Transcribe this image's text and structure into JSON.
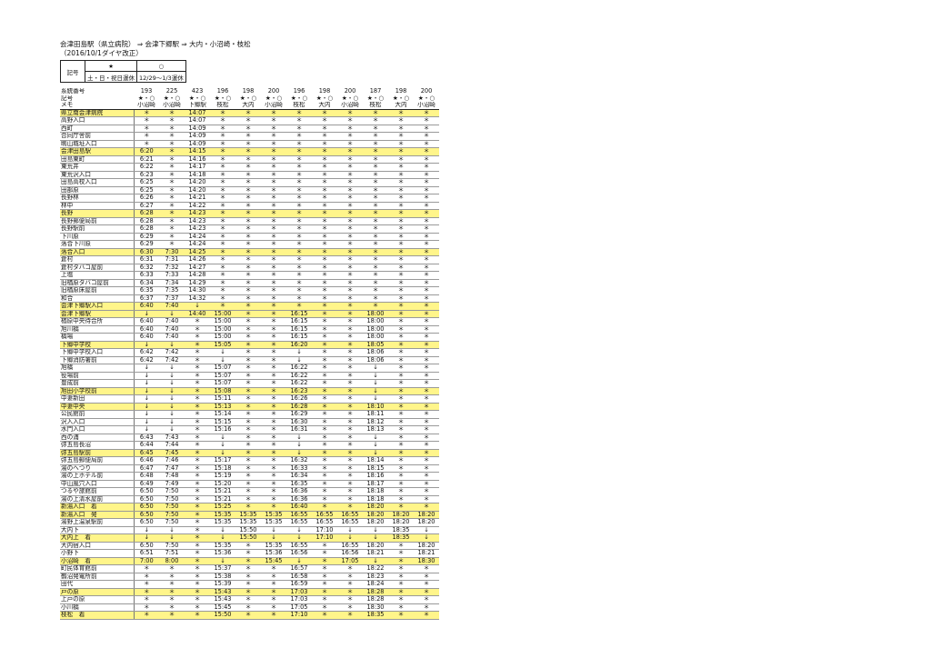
{
  "title": {
    "line1": "会津田島駅（県立病院） ⇒ 会津下郷駅 ⇒ 大内・小沼崎・枝松",
    "line2": "（2016/10/1ダイヤ改正）"
  },
  "legend": {
    "key_label": "記号",
    "sym1": "★",
    "sym2": "○",
    "desc1": "土・日・祝日運休",
    "desc2": "12/29～1/3運休"
  },
  "timetable": {
    "header_labels": [
      "系統番号",
      "記号",
      "メモ"
    ],
    "route_numbers": [
      "193",
      "225",
      "423",
      "196",
      "198",
      "200",
      "196",
      "198",
      "200",
      "187",
      "198",
      "200"
    ],
    "symbols": [
      "★・○",
      "★・○",
      "★・○",
      "★・○",
      "★・○",
      "★・○",
      "★・○",
      "★・○",
      "★・○",
      "★・○",
      "★・○",
      "★・○"
    ],
    "memos": [
      "小沼崎",
      "小沼崎",
      "下郷駅",
      "枝松",
      "大内",
      "小沼崎",
      "枝松",
      "大内",
      "小沼崎",
      "枝松",
      "大内",
      "小沼崎"
    ],
    "rows": [
      {
        "stop": "県立南会津病院",
        "hl": true,
        "times": [
          "＊",
          "＊",
          "14:07",
          "＊",
          "＊",
          "＊",
          "＊",
          "＊",
          "＊",
          "＊",
          "＊",
          "＊"
        ]
      },
      {
        "stop": "高野入口",
        "times": [
          "＊",
          "＊",
          "14:07",
          "＊",
          "＊",
          "＊",
          "＊",
          "＊",
          "＊",
          "＊",
          "＊",
          "＊"
        ]
      },
      {
        "stop": "西町",
        "times": [
          "＊",
          "＊",
          "14:09",
          "＊",
          "＊",
          "＊",
          "＊",
          "＊",
          "＊",
          "＊",
          "＊",
          "＊"
        ]
      },
      {
        "stop": "合同庁舎前",
        "times": [
          "＊",
          "＊",
          "14:09",
          "＊",
          "＊",
          "＊",
          "＊",
          "＊",
          "＊",
          "＊",
          "＊",
          "＊"
        ]
      },
      {
        "stop": "鴫山城址入口",
        "times": [
          "＊",
          "＊",
          "14:09",
          "＊",
          "＊",
          "＊",
          "＊",
          "＊",
          "＊",
          "＊",
          "＊",
          "＊"
        ]
      },
      {
        "stop": "会津田島駅",
        "hl": true,
        "times": [
          "6:20",
          "＊",
          "14:15",
          "＊",
          "＊",
          "＊",
          "＊",
          "＊",
          "＊",
          "＊",
          "＊",
          "＊"
        ]
      },
      {
        "stop": "田島東町",
        "times": [
          "6:21",
          "＊",
          "14:16",
          "＊",
          "＊",
          "＊",
          "＊",
          "＊",
          "＊",
          "＊",
          "＊",
          "＊"
        ]
      },
      {
        "stop": "東荒井",
        "times": [
          "6:22",
          "＊",
          "14:17",
          "＊",
          "＊",
          "＊",
          "＊",
          "＊",
          "＊",
          "＊",
          "＊",
          "＊"
        ]
      },
      {
        "stop": "東荒沢入口",
        "times": [
          "6:23",
          "＊",
          "14:18",
          "＊",
          "＊",
          "＊",
          "＊",
          "＊",
          "＊",
          "＊",
          "＊",
          "＊"
        ]
      },
      {
        "stop": "田島高校入口",
        "times": [
          "6:25",
          "＊",
          "14:20",
          "＊",
          "＊",
          "＊",
          "＊",
          "＊",
          "＊",
          "＊",
          "＊",
          "＊"
        ]
      },
      {
        "stop": "田部原",
        "times": [
          "6:25",
          "＊",
          "14:20",
          "＊",
          "＊",
          "＊",
          "＊",
          "＊",
          "＊",
          "＊",
          "＊",
          "＊"
        ]
      },
      {
        "stop": "長野林",
        "times": [
          "6:26",
          "＊",
          "14:21",
          "＊",
          "＊",
          "＊",
          "＊",
          "＊",
          "＊",
          "＊",
          "＊",
          "＊"
        ]
      },
      {
        "stop": "林中",
        "times": [
          "6:27",
          "＊",
          "14:22",
          "＊",
          "＊",
          "＊",
          "＊",
          "＊",
          "＊",
          "＊",
          "＊",
          "＊"
        ]
      },
      {
        "stop": "長野",
        "hl": true,
        "times": [
          "6:28",
          "＊",
          "14:23",
          "＊",
          "＊",
          "＊",
          "＊",
          "＊",
          "＊",
          "＊",
          "＊",
          "＊"
        ]
      },
      {
        "stop": "長野郵便局前",
        "times": [
          "6:28",
          "＊",
          "14:23",
          "＊",
          "＊",
          "＊",
          "＊",
          "＊",
          "＊",
          "＊",
          "＊",
          "＊"
        ]
      },
      {
        "stop": "長野駅前",
        "times": [
          "6:28",
          "＊",
          "14:23",
          "＊",
          "＊",
          "＊",
          "＊",
          "＊",
          "＊",
          "＊",
          "＊",
          "＊"
        ]
      },
      {
        "stop": "下川原",
        "times": [
          "6:29",
          "＊",
          "14:24",
          "＊",
          "＊",
          "＊",
          "＊",
          "＊",
          "＊",
          "＊",
          "＊",
          "＊"
        ]
      },
      {
        "stop": "落合下川原",
        "times": [
          "6:29",
          "＊",
          "14:24",
          "＊",
          "＊",
          "＊",
          "＊",
          "＊",
          "＊",
          "＊",
          "＊",
          "＊"
        ]
      },
      {
        "stop": "落合入口",
        "hl": true,
        "times": [
          "6:30",
          "7:30",
          "14:25",
          "＊",
          "＊",
          "＊",
          "＊",
          "＊",
          "＊",
          "＊",
          "＊",
          "＊"
        ]
      },
      {
        "stop": "倉村",
        "times": [
          "6:31",
          "7:31",
          "14:26",
          "＊",
          "＊",
          "＊",
          "＊",
          "＊",
          "＊",
          "＊",
          "＊",
          "＊"
        ]
      },
      {
        "stop": "倉村タバコ屋前",
        "times": [
          "6:32",
          "7:32",
          "14:27",
          "＊",
          "＊",
          "＊",
          "＊",
          "＊",
          "＊",
          "＊",
          "＊",
          "＊"
        ]
      },
      {
        "stop": "上塩",
        "times": [
          "6:33",
          "7:33",
          "14:28",
          "＊",
          "＊",
          "＊",
          "＊",
          "＊",
          "＊",
          "＊",
          "＊",
          "＊"
        ]
      },
      {
        "stop": "旧楢原タバコ屋前",
        "times": [
          "6:34",
          "7:34",
          "14:29",
          "＊",
          "＊",
          "＊",
          "＊",
          "＊",
          "＊",
          "＊",
          "＊",
          "＊"
        ]
      },
      {
        "stop": "旧楢原床屋前",
        "times": [
          "6:35",
          "7:35",
          "14:30",
          "＊",
          "＊",
          "＊",
          "＊",
          "＊",
          "＊",
          "＊",
          "＊",
          "＊"
        ]
      },
      {
        "stop": "和合",
        "times": [
          "6:37",
          "7:37",
          "14:32",
          "＊",
          "＊",
          "＊",
          "＊",
          "＊",
          "＊",
          "＊",
          "＊",
          "＊"
        ]
      },
      {
        "stop": "会津下郷駅入口",
        "hl": true,
        "times": [
          "6:40",
          "7:40",
          "↓",
          "＊",
          "＊",
          "＊",
          "＊",
          "＊",
          "＊",
          "＊",
          "＊",
          "＊"
        ]
      },
      {
        "stop": "会津下郷駅",
        "hl": true,
        "times": [
          "↓",
          "↓",
          "14:40",
          "15:00",
          "＊",
          "＊",
          "16:15",
          "＊",
          "＊",
          "18:00",
          "＊",
          "＊"
        ]
      },
      {
        "stop": "楢原中央待合所",
        "times": [
          "6:40",
          "7:40",
          "＊",
          "15:00",
          "＊",
          "＊",
          "16:15",
          "＊",
          "＊",
          "18:00",
          "＊",
          "＊"
        ]
      },
      {
        "stop": "旭川橋",
        "times": [
          "6:40",
          "7:40",
          "＊",
          "15:00",
          "＊",
          "＊",
          "16:15",
          "＊",
          "＊",
          "18:00",
          "＊",
          "＊"
        ]
      },
      {
        "stop": "橋場",
        "times": [
          "6:40",
          "7:40",
          "＊",
          "15:00",
          "＊",
          "＊",
          "16:15",
          "＊",
          "＊",
          "18:00",
          "＊",
          "＊"
        ]
      },
      {
        "stop": "下郷中学校",
        "hl": true,
        "times": [
          "↓",
          "↓",
          "＊",
          "15:05",
          "＊",
          "＊",
          "16:20",
          "＊",
          "＊",
          "18:05",
          "＊",
          "＊"
        ]
      },
      {
        "stop": "下郷中学校入口",
        "times": [
          "6:42",
          "7:42",
          "＊",
          "↓",
          "＊",
          "＊",
          "↓",
          "＊",
          "＊",
          "18:06",
          "＊",
          "＊"
        ]
      },
      {
        "stop": "下郷消防署前",
        "times": [
          "6:42",
          "7:42",
          "＊",
          "↓",
          "＊",
          "＊",
          "↓",
          "＊",
          "＊",
          "18:06",
          "＊",
          "＊"
        ]
      },
      {
        "stop": "旭橋",
        "times": [
          "↓",
          "↓",
          "＊",
          "15:07",
          "＊",
          "＊",
          "16:22",
          "＊",
          "＊",
          "↓",
          "＊",
          "＊"
        ]
      },
      {
        "stop": "役場前",
        "times": [
          "↓",
          "↓",
          "＊",
          "15:07",
          "＊",
          "＊",
          "16:22",
          "＊",
          "＊",
          "↓",
          "＊",
          "＊"
        ]
      },
      {
        "stop": "豊成前",
        "times": [
          "↓",
          "↓",
          "＊",
          "15:07",
          "＊",
          "＊",
          "16:22",
          "＊",
          "＊",
          "↓",
          "＊",
          "＊"
        ]
      },
      {
        "stop": "旭田小学校前",
        "hl": true,
        "times": [
          "↓",
          "↓",
          "＊",
          "15:08",
          "＊",
          "＊",
          "16:23",
          "＊",
          "＊",
          "↓",
          "＊",
          "＊"
        ]
      },
      {
        "stop": "中妻新田",
        "times": [
          "↓",
          "↓",
          "＊",
          "15:11",
          "＊",
          "＊",
          "16:26",
          "＊",
          "＊",
          "↓",
          "＊",
          "＊"
        ]
      },
      {
        "stop": "中妻中央",
        "hl": true,
        "times": [
          "↓",
          "↓",
          "＊",
          "15:13",
          "＊",
          "＊",
          "16:28",
          "＊",
          "＊",
          "18:10",
          "＊",
          "＊"
        ]
      },
      {
        "stop": "公民館前",
        "times": [
          "↓",
          "↓",
          "＊",
          "15:14",
          "＊",
          "＊",
          "16:29",
          "＊",
          "＊",
          "18:11",
          "＊",
          "＊"
        ]
      },
      {
        "stop": "沢入入口",
        "times": [
          "↓",
          "↓",
          "＊",
          "15:15",
          "＊",
          "＊",
          "16:30",
          "＊",
          "＊",
          "18:12",
          "＊",
          "＊"
        ]
      },
      {
        "stop": "水門入口",
        "times": [
          "↓",
          "↓",
          "＊",
          "15:16",
          "＊",
          "＊",
          "16:31",
          "＊",
          "＊",
          "18:13",
          "＊",
          "＊"
        ]
      },
      {
        "stop": "西の浦",
        "times": [
          "6:43",
          "7:43",
          "＊",
          "↓",
          "＊",
          "＊",
          "↓",
          "＊",
          "＊",
          "↓",
          "＊",
          "＊"
        ]
      },
      {
        "stop": "弥五島長沼",
        "times": [
          "6:44",
          "7:44",
          "＊",
          "↓",
          "＊",
          "＊",
          "↓",
          "＊",
          "＊",
          "↓",
          "＊",
          "＊"
        ]
      },
      {
        "stop": "弥五島駅前",
        "hl": true,
        "times": [
          "6:45",
          "7:45",
          "＊",
          "↓",
          "＊",
          "＊",
          "↓",
          "＊",
          "＊",
          "↓",
          "＊",
          "＊"
        ]
      },
      {
        "stop": "弥五島郵便局前",
        "times": [
          "6:46",
          "7:46",
          "＊",
          "15:17",
          "＊",
          "＊",
          "16:32",
          "＊",
          "＊",
          "18:14",
          "＊",
          "＊"
        ]
      },
      {
        "stop": "湯のへつり",
        "times": [
          "6:47",
          "7:47",
          "＊",
          "15:18",
          "＊",
          "＊",
          "16:33",
          "＊",
          "＊",
          "18:15",
          "＊",
          "＊"
        ]
      },
      {
        "stop": "湯の上ホテル前",
        "times": [
          "6:48",
          "7:48",
          "＊",
          "15:19",
          "＊",
          "＊",
          "16:34",
          "＊",
          "＊",
          "18:16",
          "＊",
          "＊"
        ]
      },
      {
        "stop": "中山風穴入口",
        "times": [
          "6:49",
          "7:49",
          "＊",
          "15:20",
          "＊",
          "＊",
          "16:35",
          "＊",
          "＊",
          "18:17",
          "＊",
          "＊"
        ]
      },
      {
        "stop": "つるや旅館前",
        "times": [
          "6:50",
          "7:50",
          "＊",
          "15:21",
          "＊",
          "＊",
          "16:36",
          "＊",
          "＊",
          "18:18",
          "＊",
          "＊"
        ]
      },
      {
        "stop": "湯の上清水屋前",
        "times": [
          "6:50",
          "7:50",
          "＊",
          "15:21",
          "＊",
          "＊",
          "16:36",
          "＊",
          "＊",
          "18:18",
          "＊",
          "＊"
        ]
      },
      {
        "stop": "新湯入口　着",
        "hl": true,
        "times": [
          "6:50",
          "7:50",
          "＊",
          "15:25",
          "＊",
          "＊",
          "16:40",
          "＊",
          "＊",
          "18:20",
          "＊",
          "＊"
        ]
      },
      {
        "stop": "新湯入口　発",
        "hl": true,
        "times": [
          "6:50",
          "7:50",
          "＊",
          "15:35",
          "15:35",
          "15:35",
          "16:55",
          "16:55",
          "16:55",
          "18:20",
          "18:20",
          "18:20"
        ]
      },
      {
        "stop": "湯野上温泉駅前",
        "times": [
          "6:50",
          "7:50",
          "＊",
          "15:35",
          "15:35",
          "15:35",
          "16:55",
          "16:55",
          "16:55",
          "18:20",
          "18:20",
          "18:20"
        ]
      },
      {
        "stop": "大内下",
        "times": [
          "↓",
          "↓",
          "＊",
          "↓",
          "15:50",
          "↓",
          "↓",
          "17:10",
          "↓",
          "↓",
          "18:35",
          "↓"
        ]
      },
      {
        "stop": "大内上　着",
        "hl": true,
        "times": [
          "↓",
          "↓",
          "＊",
          "↓",
          "15:50",
          "↓",
          "↓",
          "17:10",
          "↓",
          "↓",
          "18:35",
          "↓"
        ]
      },
      {
        "stop": "大内宿入口",
        "times": [
          "6:50",
          "7:50",
          "＊",
          "15:35",
          "＊",
          "15:35",
          "16:55",
          "＊",
          "16:55",
          "18:20",
          "＊",
          "18:20"
        ]
      },
      {
        "stop": "小野下",
        "times": [
          "6:51",
          "7:51",
          "＊",
          "15:36",
          "＊",
          "15:36",
          "16:56",
          "＊",
          "16:56",
          "18:21",
          "＊",
          "18:21"
        ]
      },
      {
        "stop": "小沼崎　着",
        "hl": true,
        "times": [
          "7:00",
          "8:00",
          "＊",
          "↓",
          "＊",
          "15:45",
          "↓",
          "＊",
          "17:05",
          "↓",
          "＊",
          "18:30"
        ]
      },
      {
        "stop": "町民体育館前",
        "times": [
          "＊",
          "＊",
          "＊",
          "15:37",
          "＊",
          "＊",
          "16:57",
          "＊",
          "＊",
          "18:22",
          "＊",
          "＊"
        ]
      },
      {
        "stop": "鶴沼発電所前",
        "times": [
          "＊",
          "＊",
          "＊",
          "15:38",
          "＊",
          "＊",
          "16:58",
          "＊",
          "＊",
          "18:23",
          "＊",
          "＊"
        ]
      },
      {
        "stop": "田代",
        "times": [
          "＊",
          "＊",
          "＊",
          "15:39",
          "＊",
          "＊",
          "16:59",
          "＊",
          "＊",
          "18:24",
          "＊",
          "＊"
        ]
      },
      {
        "stop": "戸の原",
        "hl": true,
        "times": [
          "＊",
          "＊",
          "＊",
          "15:43",
          "＊",
          "＊",
          "17:03",
          "＊",
          "＊",
          "18:28",
          "＊",
          "＊"
        ]
      },
      {
        "stop": "上戸の原",
        "times": [
          "＊",
          "＊",
          "＊",
          "15:43",
          "＊",
          "＊",
          "17:03",
          "＊",
          "＊",
          "18:28",
          "＊",
          "＊"
        ]
      },
      {
        "stop": "小川橋",
        "times": [
          "＊",
          "＊",
          "＊",
          "15:45",
          "＊",
          "＊",
          "17:05",
          "＊",
          "＊",
          "18:30",
          "＊",
          "＊"
        ]
      },
      {
        "stop": "枝松　着",
        "hl": true,
        "times": [
          "＊",
          "＊",
          "＊",
          "15:50",
          "＊",
          "＊",
          "17:10",
          "＊",
          "＊",
          "18:35",
          "＊",
          "＊"
        ]
      }
    ]
  },
  "colors": {
    "highlight": "#fff58a"
  }
}
